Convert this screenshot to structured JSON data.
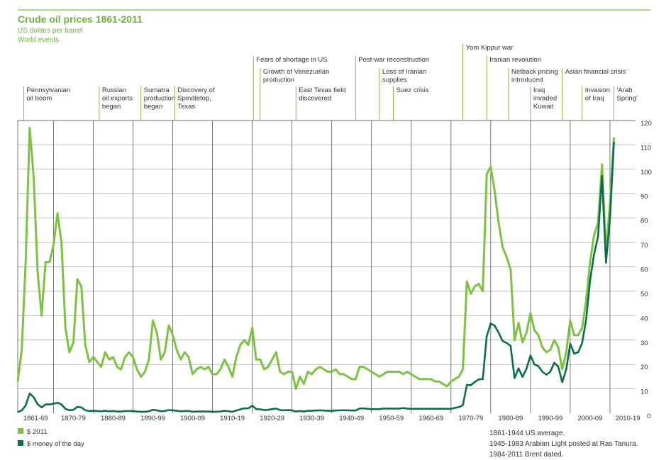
{
  "chart_data": {
    "type": "line",
    "title": "Crude oil prices 1861-2011",
    "subtitle": "US dollars per barrel",
    "events_heading": "World events",
    "grid": true,
    "xlim": [
      1861,
      2016.4
    ],
    "ylim": [
      0,
      120
    ],
    "yticks": [
      0,
      10,
      20,
      30,
      40,
      50,
      60,
      70,
      80,
      90,
      100,
      110,
      120
    ],
    "xticks": [
      {
        "value": 1861,
        "label": "1861-69"
      },
      {
        "value": 1870,
        "label": "1870-79"
      },
      {
        "value": 1880,
        "label": "1880-89"
      },
      {
        "value": 1890,
        "label": "1890-99"
      },
      {
        "value": 1900,
        "label": "1900-09"
      },
      {
        "value": 1910,
        "label": "1910-19"
      },
      {
        "value": 1920,
        "label": "1920-29"
      },
      {
        "value": 1930,
        "label": "1930-39"
      },
      {
        "value": 1940,
        "label": "1940-49"
      },
      {
        "value": 1950,
        "label": "1950-59"
      },
      {
        "value": 1960,
        "label": "1960-69"
      },
      {
        "value": 1970,
        "label": "1970-79"
      },
      {
        "value": 1980,
        "label": "1980-89"
      },
      {
        "value": 1990,
        "label": "1990-99"
      },
      {
        "value": 2000,
        "label": "2000-09"
      },
      {
        "value": 2010,
        "label": "2010-19"
      }
    ],
    "x": [
      1861,
      1862,
      1863,
      1864,
      1865,
      1866,
      1867,
      1868,
      1869,
      1870,
      1871,
      1872,
      1873,
      1874,
      1875,
      1876,
      1877,
      1878,
      1879,
      1880,
      1881,
      1882,
      1883,
      1884,
      1885,
      1886,
      1887,
      1888,
      1889,
      1890,
      1891,
      1892,
      1893,
      1894,
      1895,
      1896,
      1897,
      1898,
      1899,
      1900,
      1901,
      1902,
      1903,
      1904,
      1905,
      1906,
      1907,
      1908,
      1909,
      1910,
      1911,
      1912,
      1913,
      1914,
      1915,
      1916,
      1917,
      1918,
      1919,
      1920,
      1921,
      1922,
      1923,
      1924,
      1925,
      1926,
      1927,
      1928,
      1929,
      1930,
      1931,
      1932,
      1933,
      1934,
      1935,
      1936,
      1937,
      1938,
      1939,
      1940,
      1941,
      1942,
      1943,
      1944,
      1945,
      1946,
      1947,
      1948,
      1949,
      1950,
      1951,
      1952,
      1953,
      1954,
      1955,
      1956,
      1957,
      1958,
      1959,
      1960,
      1961,
      1962,
      1963,
      1964,
      1965,
      1966,
      1967,
      1968,
      1969,
      1970,
      1971,
      1972,
      1973,
      1974,
      1975,
      1976,
      1977,
      1978,
      1979,
      1980,
      1981,
      1982,
      1983,
      1984,
      1985,
      1986,
      1987,
      1988,
      1989,
      1990,
      1991,
      1992,
      1993,
      1994,
      1995,
      1996,
      1997,
      1998,
      1999,
      2000,
      2001,
      2002,
      2003,
      2004,
      2005,
      2006,
      2007,
      2008,
      2009,
      2010,
      2011
    ],
    "series": [
      {
        "name": "$ 2011",
        "color": "#7dc242",
        "values": [
          13,
          26,
          62,
          117,
          97,
          58,
          40,
          62,
          62,
          69,
          82,
          70,
          35,
          25,
          29,
          55,
          52,
          28,
          21,
          23,
          21,
          19,
          25,
          22,
          23,
          19,
          18,
          23,
          25,
          23,
          18,
          15,
          17,
          22,
          38,
          33,
          22,
          25,
          36,
          32,
          26,
          22,
          25,
          23,
          16,
          18,
          19,
          18,
          19,
          16,
          16,
          18,
          22,
          19,
          15,
          23,
          28,
          30,
          28,
          35,
          22,
          22,
          18,
          19,
          22,
          25,
          17,
          16,
          17,
          17,
          10,
          15,
          12,
          17,
          16,
          18,
          19,
          18,
          17,
          17,
          18,
          16,
          16,
          15,
          14,
          14,
          19,
          19,
          18,
          17,
          16,
          15,
          16,
          17,
          17,
          17,
          17,
          16,
          17,
          16,
          15,
          14,
          14,
          14,
          14,
          13,
          13,
          12,
          11,
          13,
          14,
          15,
          18,
          54,
          49,
          52,
          53,
          50,
          98,
          101,
          91,
          78,
          68,
          64,
          59,
          30,
          37,
          29,
          33,
          41,
          34,
          32,
          27,
          25,
          26,
          30,
          27,
          18,
          25,
          38,
          32,
          32,
          35,
          46,
          62,
          73,
          78,
          102,
          66,
          86,
          113
        ]
      },
      {
        "name": "$ money of the day",
        "color": "#0b6e4a",
        "values": [
          0.5,
          1.1,
          3.2,
          8.1,
          6.6,
          3.7,
          2.4,
          3.6,
          3.6,
          3.9,
          4.3,
          3.6,
          1.8,
          1.2,
          1.4,
          2.6,
          2.4,
          1.2,
          0.9,
          1.0,
          0.9,
          0.8,
          1.0,
          0.8,
          0.9,
          0.7,
          0.7,
          0.9,
          0.9,
          0.9,
          0.7,
          0.6,
          0.6,
          0.8,
          1.4,
          1.2,
          0.8,
          0.9,
          1.3,
          1.2,
          1.0,
          0.8,
          0.9,
          0.9,
          0.6,
          0.7,
          0.7,
          0.7,
          0.7,
          0.6,
          0.6,
          0.7,
          1.0,
          0.8,
          0.6,
          1.1,
          1.6,
          2.0,
          2.0,
          3.1,
          1.7,
          1.6,
          1.3,
          1.4,
          1.7,
          1.9,
          1.3,
          1.2,
          1.3,
          1.2,
          0.7,
          0.9,
          0.7,
          1.0,
          1.0,
          1.1,
          1.2,
          1.1,
          1.0,
          1.0,
          1.1,
          1.2,
          1.2,
          1.2,
          1.1,
          1.1,
          1.9,
          2.0,
          1.8,
          1.7,
          1.7,
          1.7,
          1.9,
          1.9,
          1.9,
          1.9,
          1.9,
          2.1,
          1.9,
          1.8,
          1.8,
          1.8,
          1.8,
          1.8,
          1.8,
          1.8,
          1.8,
          1.8,
          1.8,
          1.8,
          2.2,
          2.5,
          3.3,
          11.6,
          11.5,
          12.8,
          13.9,
          14.0,
          31.6,
          36.8,
          35.9,
          33.0,
          29.6,
          28.8,
          27.6,
          14.4,
          18.4,
          14.9,
          18.2,
          23.7,
          20.0,
          19.3,
          17.0,
          15.8,
          17.0,
          20.7,
          19.1,
          12.7,
          18.0,
          28.5,
          24.4,
          25.0,
          28.8,
          38.3,
          54.5,
          65.1,
          72.4,
          97.3,
          61.7,
          79.5,
          111.3
        ]
      }
    ],
    "events": [
      {
        "year": 1862.5,
        "label": [
          "Pennsylvanian",
          "oil boom"
        ]
      },
      {
        "year": 1881.5,
        "label": [
          "Russian",
          "oil exports",
          "began"
        ]
      },
      {
        "year": 1892,
        "label": [
          "Sumatra",
          "production",
          "began"
        ]
      },
      {
        "year": 1900.5,
        "label": [
          "Discovery of",
          "Spindletop,",
          "Texas"
        ]
      },
      {
        "year": 1920.3,
        "label": [
          "Fears of shortage in US"
        ]
      },
      {
        "year": 1922,
        "label": [
          "Growth of Venezuelan",
          "production"
        ]
      },
      {
        "year": 1931,
        "label": [
          "East Texas field",
          "discovered"
        ]
      },
      {
        "year": 1946,
        "label": [
          "Post-war reconstruction"
        ]
      },
      {
        "year": 1952,
        "label": [
          "Loss of Iranian",
          "supplies"
        ]
      },
      {
        "year": 1955.5,
        "label": [
          "Suez crisis"
        ]
      },
      {
        "year": 1973,
        "label": [
          "Yom Kippur war"
        ]
      },
      {
        "year": 1979,
        "label": [
          "Iranian revolution"
        ]
      },
      {
        "year": 1984.5,
        "label": [
          "Netback pricing",
          "introduced"
        ]
      },
      {
        "year": 1990,
        "label": [
          "Iraq",
          "invaded",
          "Kuwait"
        ]
      },
      {
        "year": 1998,
        "label": [
          "Asian financial crisis"
        ]
      },
      {
        "year": 2003,
        "label": [
          "Invasion",
          "of Iraq"
        ]
      },
      {
        "year": 2011,
        "label": [
          "'Arab",
          "Spring'"
        ]
      }
    ],
    "notes": [
      "1861-1944 US average.",
      "1945-1983 Arabian Light posted at Ras Tanura.",
      "1984-2011 Brent dated."
    ]
  }
}
